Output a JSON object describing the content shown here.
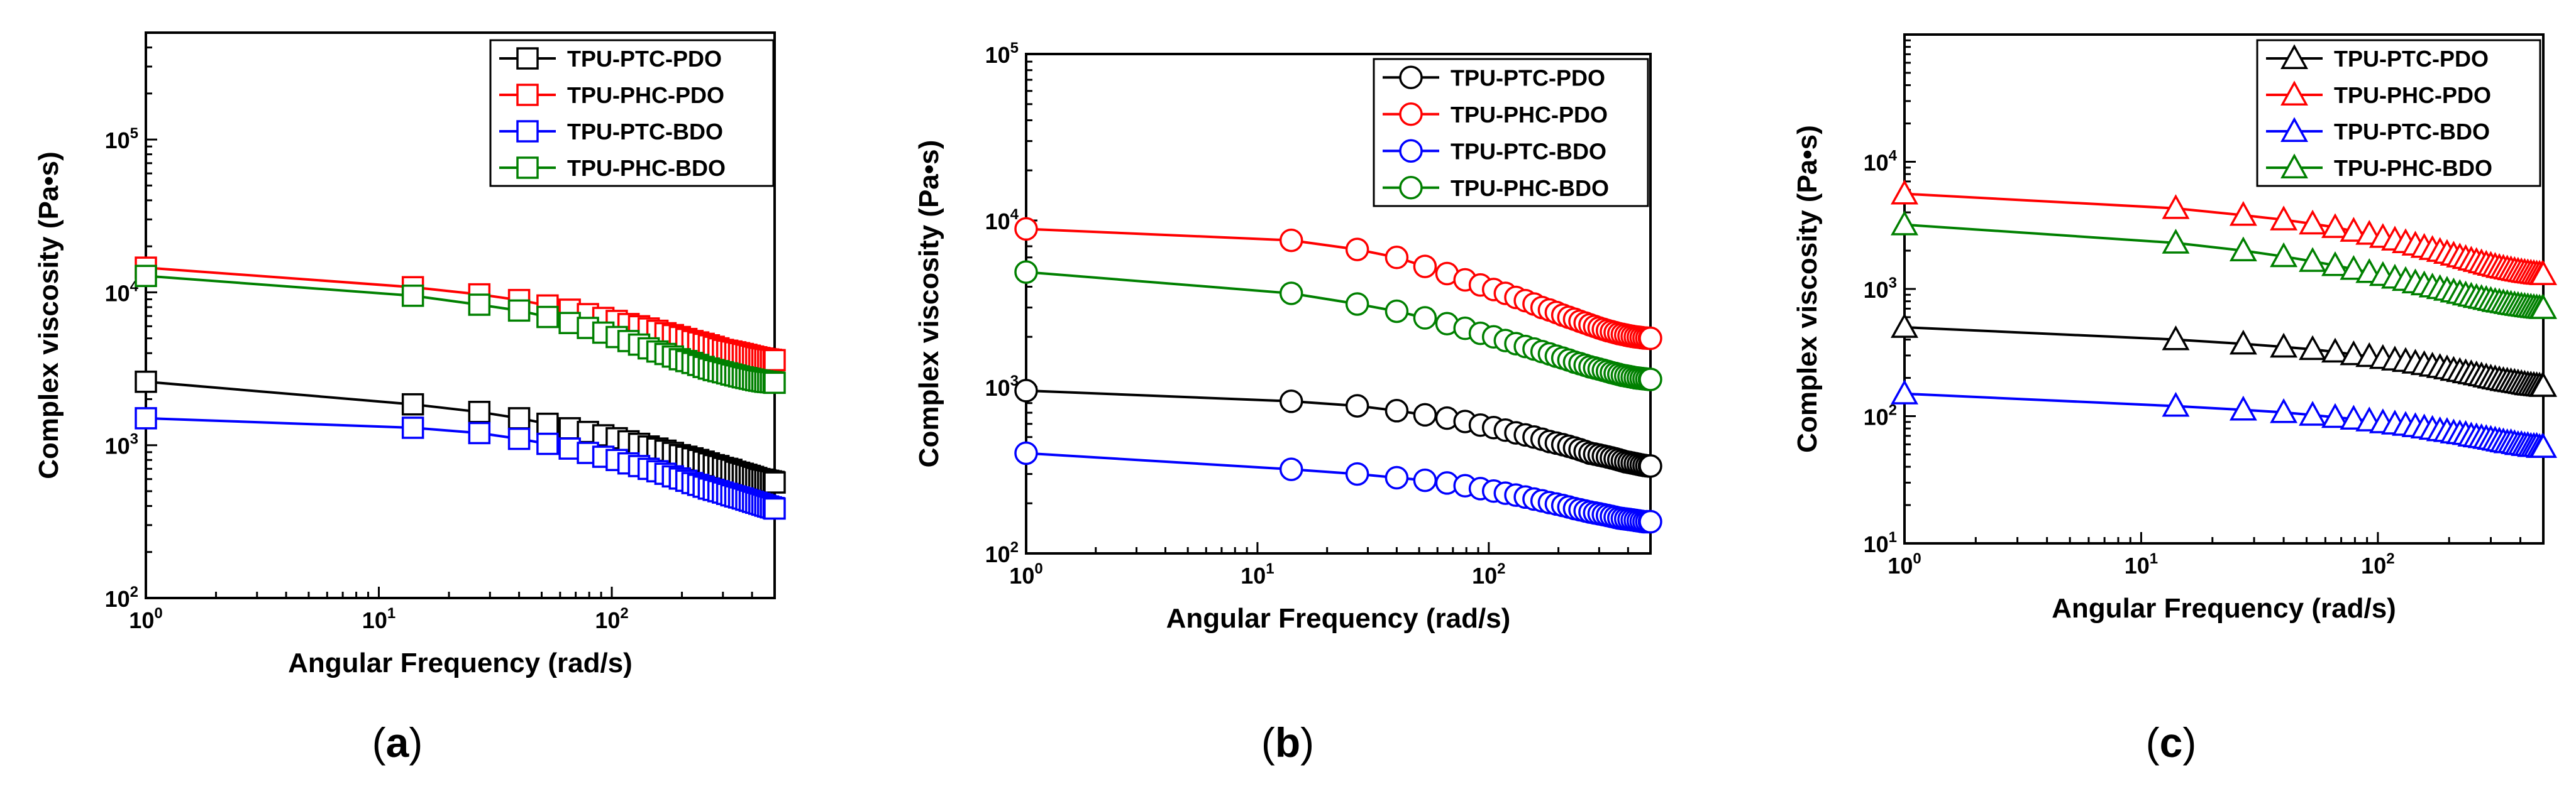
{
  "chart_data": [
    {
      "panel": "a",
      "type": "line",
      "marker": "square",
      "xlabel": "Angular Frequency (rad/s)",
      "ylabel": "Complex viscosity (Pa•s)",
      "xscale": "log",
      "yscale": "log",
      "xlim": [
        1,
        500
      ],
      "ylim": [
        100,
        500000
      ],
      "x_ticks": [
        1,
        10,
        100
      ],
      "y_ticks": [
        100,
        1000,
        10000,
        100000
      ],
      "x": [
        1,
        14,
        27,
        40,
        53,
        66,
        79,
        92,
        105,
        118,
        131,
        144,
        157,
        170,
        183,
        196,
        209,
        222,
        235,
        248,
        261,
        274,
        287,
        300,
        313,
        326,
        339,
        352,
        365,
        378,
        391,
        404,
        417,
        430,
        443,
        456,
        469,
        482,
        495,
        500
      ],
      "series": [
        {
          "name": "TPU-PTC-PDO",
          "color": "#000000",
          "values": [
            2600,
            1850,
            1650,
            1500,
            1380,
            1290,
            1220,
            1160,
            1110,
            1060,
            1020,
            980,
            950,
            920,
            890,
            860,
            840,
            820,
            800,
            780,
            760,
            740,
            730,
            710,
            700,
            690,
            670,
            660,
            650,
            640,
            630,
            620,
            610,
            600,
            595,
            590,
            585,
            580,
            575,
            570
          ]
        },
        {
          "name": "TPU-PHC-PDO",
          "color": "#ff0000",
          "values": [
            14500,
            10800,
            9700,
            8900,
            8200,
            7700,
            7200,
            6800,
            6500,
            6200,
            6000,
            5800,
            5600,
            5400,
            5250,
            5100,
            4950,
            4800,
            4700,
            4600,
            4500,
            4400,
            4300,
            4200,
            4150,
            4100,
            4050,
            4000,
            3950,
            3900,
            3850,
            3800,
            3760,
            3720,
            3690,
            3660,
            3640,
            3620,
            3600,
            3600
          ]
        },
        {
          "name": "TPU-PTC-BDO",
          "color": "#0000ff",
          "values": [
            1500,
            1300,
            1200,
            1100,
            1020,
            950,
            890,
            840,
            800,
            760,
            730,
            700,
            675,
            650,
            625,
            605,
            585,
            565,
            550,
            535,
            520,
            510,
            500,
            490,
            480,
            470,
            462,
            455,
            448,
            440,
            433,
            426,
            420,
            414,
            408,
            402,
            397,
            392,
            388,
            385
          ]
        },
        {
          "name": "TPU-PHC-BDO",
          "color": "#008000",
          "values": [
            12800,
            9500,
            8300,
            7600,
            6900,
            6300,
            5850,
            5450,
            5100,
            4800,
            4550,
            4300,
            4100,
            3950,
            3800,
            3650,
            3550,
            3450,
            3350,
            3250,
            3170,
            3100,
            3050,
            3000,
            2950,
            2900,
            2860,
            2820,
            2780,
            2750,
            2720,
            2690,
            2660,
            2640,
            2620,
            2600,
            2590,
            2580,
            2570,
            2560
          ]
        }
      ]
    },
    {
      "panel": "b",
      "type": "line",
      "marker": "circle",
      "xlabel": "Angular Frequency (rad/s)",
      "ylabel": "Complex viscosity (Pa•s)",
      "xscale": "log",
      "yscale": "log",
      "xlim": [
        1,
        500
      ],
      "ylim": [
        100,
        100000
      ],
      "x_ticks": [
        1,
        10,
        100
      ],
      "y_ticks": [
        100,
        1000,
        10000,
        100000
      ],
      "x": [
        1,
        14,
        27,
        40,
        53,
        66,
        79,
        92,
        105,
        118,
        131,
        144,
        157,
        170,
        183,
        196,
        209,
        222,
        235,
        248,
        261,
        274,
        287,
        300,
        313,
        326,
        339,
        352,
        365,
        378,
        391,
        404,
        417,
        430,
        443,
        456,
        469,
        482,
        495,
        500
      ],
      "series": [
        {
          "name": "TPU-PTC-PDO",
          "color": "#000000",
          "values": [
            950,
            820,
            770,
            720,
            680,
            650,
            620,
            590,
            570,
            550,
            530,
            515,
            500,
            485,
            470,
            460,
            450,
            440,
            430,
            420,
            410,
            400,
            395,
            390,
            385,
            380,
            375,
            370,
            365,
            360,
            355,
            352,
            349,
            346,
            343,
            340,
            338,
            336,
            335,
            335
          ]
        },
        {
          "name": "TPU-PHC-PDO",
          "color": "#ff0000",
          "values": [
            8900,
            7600,
            6700,
            6000,
            5300,
            4800,
            4400,
            4100,
            3850,
            3650,
            3450,
            3300,
            3150,
            3000,
            2900,
            2800,
            2700,
            2620,
            2550,
            2480,
            2420,
            2360,
            2310,
            2260,
            2220,
            2180,
            2150,
            2120,
            2090,
            2070,
            2050,
            2030,
            2015,
            2000,
            1990,
            1980,
            1970,
            1965,
            1960,
            1960
          ]
        },
        {
          "name": "TPU-PTC-BDO",
          "color": "#0000ff",
          "values": [
            400,
            320,
            300,
            285,
            275,
            265,
            255,
            245,
            237,
            230,
            224,
            218,
            212,
            207,
            202,
            198,
            194,
            190,
            186,
            183,
            180,
            177,
            175,
            173,
            171,
            169,
            167,
            165,
            163,
            162,
            161,
            160,
            159,
            158,
            157,
            156,
            155,
            155,
            155,
            155
          ]
        },
        {
          "name": "TPU-PHC-BDO",
          "color": "#008000",
          "values": [
            4900,
            3650,
            3150,
            2850,
            2600,
            2400,
            2250,
            2100,
            2000,
            1900,
            1820,
            1750,
            1690,
            1630,
            1580,
            1530,
            1490,
            1450,
            1410,
            1380,
            1350,
            1320,
            1300,
            1280,
            1260,
            1240,
            1220,
            1205,
            1190,
            1175,
            1165,
            1155,
            1145,
            1135,
            1130,
            1125,
            1120,
            1115,
            1110,
            1110
          ]
        }
      ]
    },
    {
      "panel": "c",
      "type": "line",
      "marker": "triangle",
      "xlabel": "Angular Frequency (rad/s)",
      "ylabel": "Complex viscosity (Pa•s)",
      "xscale": "log",
      "yscale": "log",
      "xlim": [
        1,
        500
      ],
      "ylim": [
        10,
        100000
      ],
      "x_ticks": [
        1,
        10,
        100
      ],
      "y_ticks": [
        10,
        100,
        1000,
        10000
      ],
      "x": [
        1,
        14,
        27,
        40,
        53,
        66,
        79,
        92,
        105,
        118,
        131,
        144,
        157,
        170,
        183,
        196,
        209,
        222,
        235,
        248,
        261,
        274,
        287,
        300,
        313,
        326,
        339,
        352,
        365,
        378,
        391,
        404,
        417,
        430,
        443,
        456,
        469,
        482,
        495,
        500
      ],
      "series": [
        {
          "name": "TPU-PTC-PDO",
          "color": "#000000",
          "values": [
            500,
            400,
            370,
            350,
            335,
            320,
            305,
            295,
            285,
            277,
            270,
            262,
            255,
            248,
            242,
            236,
            230,
            225,
            220,
            216,
            212,
            208,
            204,
            200,
            197,
            194,
            191,
            189,
            187,
            185,
            183,
            181,
            179,
            177,
            176,
            175,
            174,
            173,
            172,
            172
          ]
        },
        {
          "name": "TPU-PHC-PDO",
          "color": "#ff0000",
          "values": [
            5600,
            4300,
            3800,
            3500,
            3250,
            3050,
            2850,
            2700,
            2550,
            2430,
            2320,
            2220,
            2130,
            2050,
            1980,
            1910,
            1850,
            1790,
            1740,
            1690,
            1650,
            1610,
            1570,
            1540,
            1510,
            1480,
            1460,
            1440,
            1420,
            1400,
            1385,
            1370,
            1355,
            1345,
            1335,
            1325,
            1315,
            1310,
            1305,
            1300
          ]
        },
        {
          "name": "TPU-PTC-BDO",
          "color": "#0000ff",
          "values": [
            150,
            120,
            112,
            107,
            102,
            98,
            95,
            92,
            89,
            87,
            85,
            83,
            81,
            79,
            77,
            76,
            74,
            73,
            72,
            70,
            69,
            68,
            67,
            66,
            65,
            64,
            63,
            62,
            62,
            61,
            60,
            60,
            59,
            59,
            58,
            58,
            58,
            57,
            57,
            57
          ]
        },
        {
          "name": "TPU-PHC-BDO",
          "color": "#008000",
          "values": [
            3200,
            2300,
            2000,
            1800,
            1650,
            1530,
            1430,
            1350,
            1280,
            1220,
            1170,
            1120,
            1080,
            1040,
            1010,
            980,
            950,
            925,
            900,
            880,
            860,
            845,
            830,
            815,
            800,
            790,
            780,
            770,
            760,
            752,
            745,
            738,
            732,
            726,
            721,
            716,
            712,
            708,
            705,
            705
          ]
        }
      ]
    }
  ],
  "captions": [
    "a",
    "b",
    "c"
  ]
}
